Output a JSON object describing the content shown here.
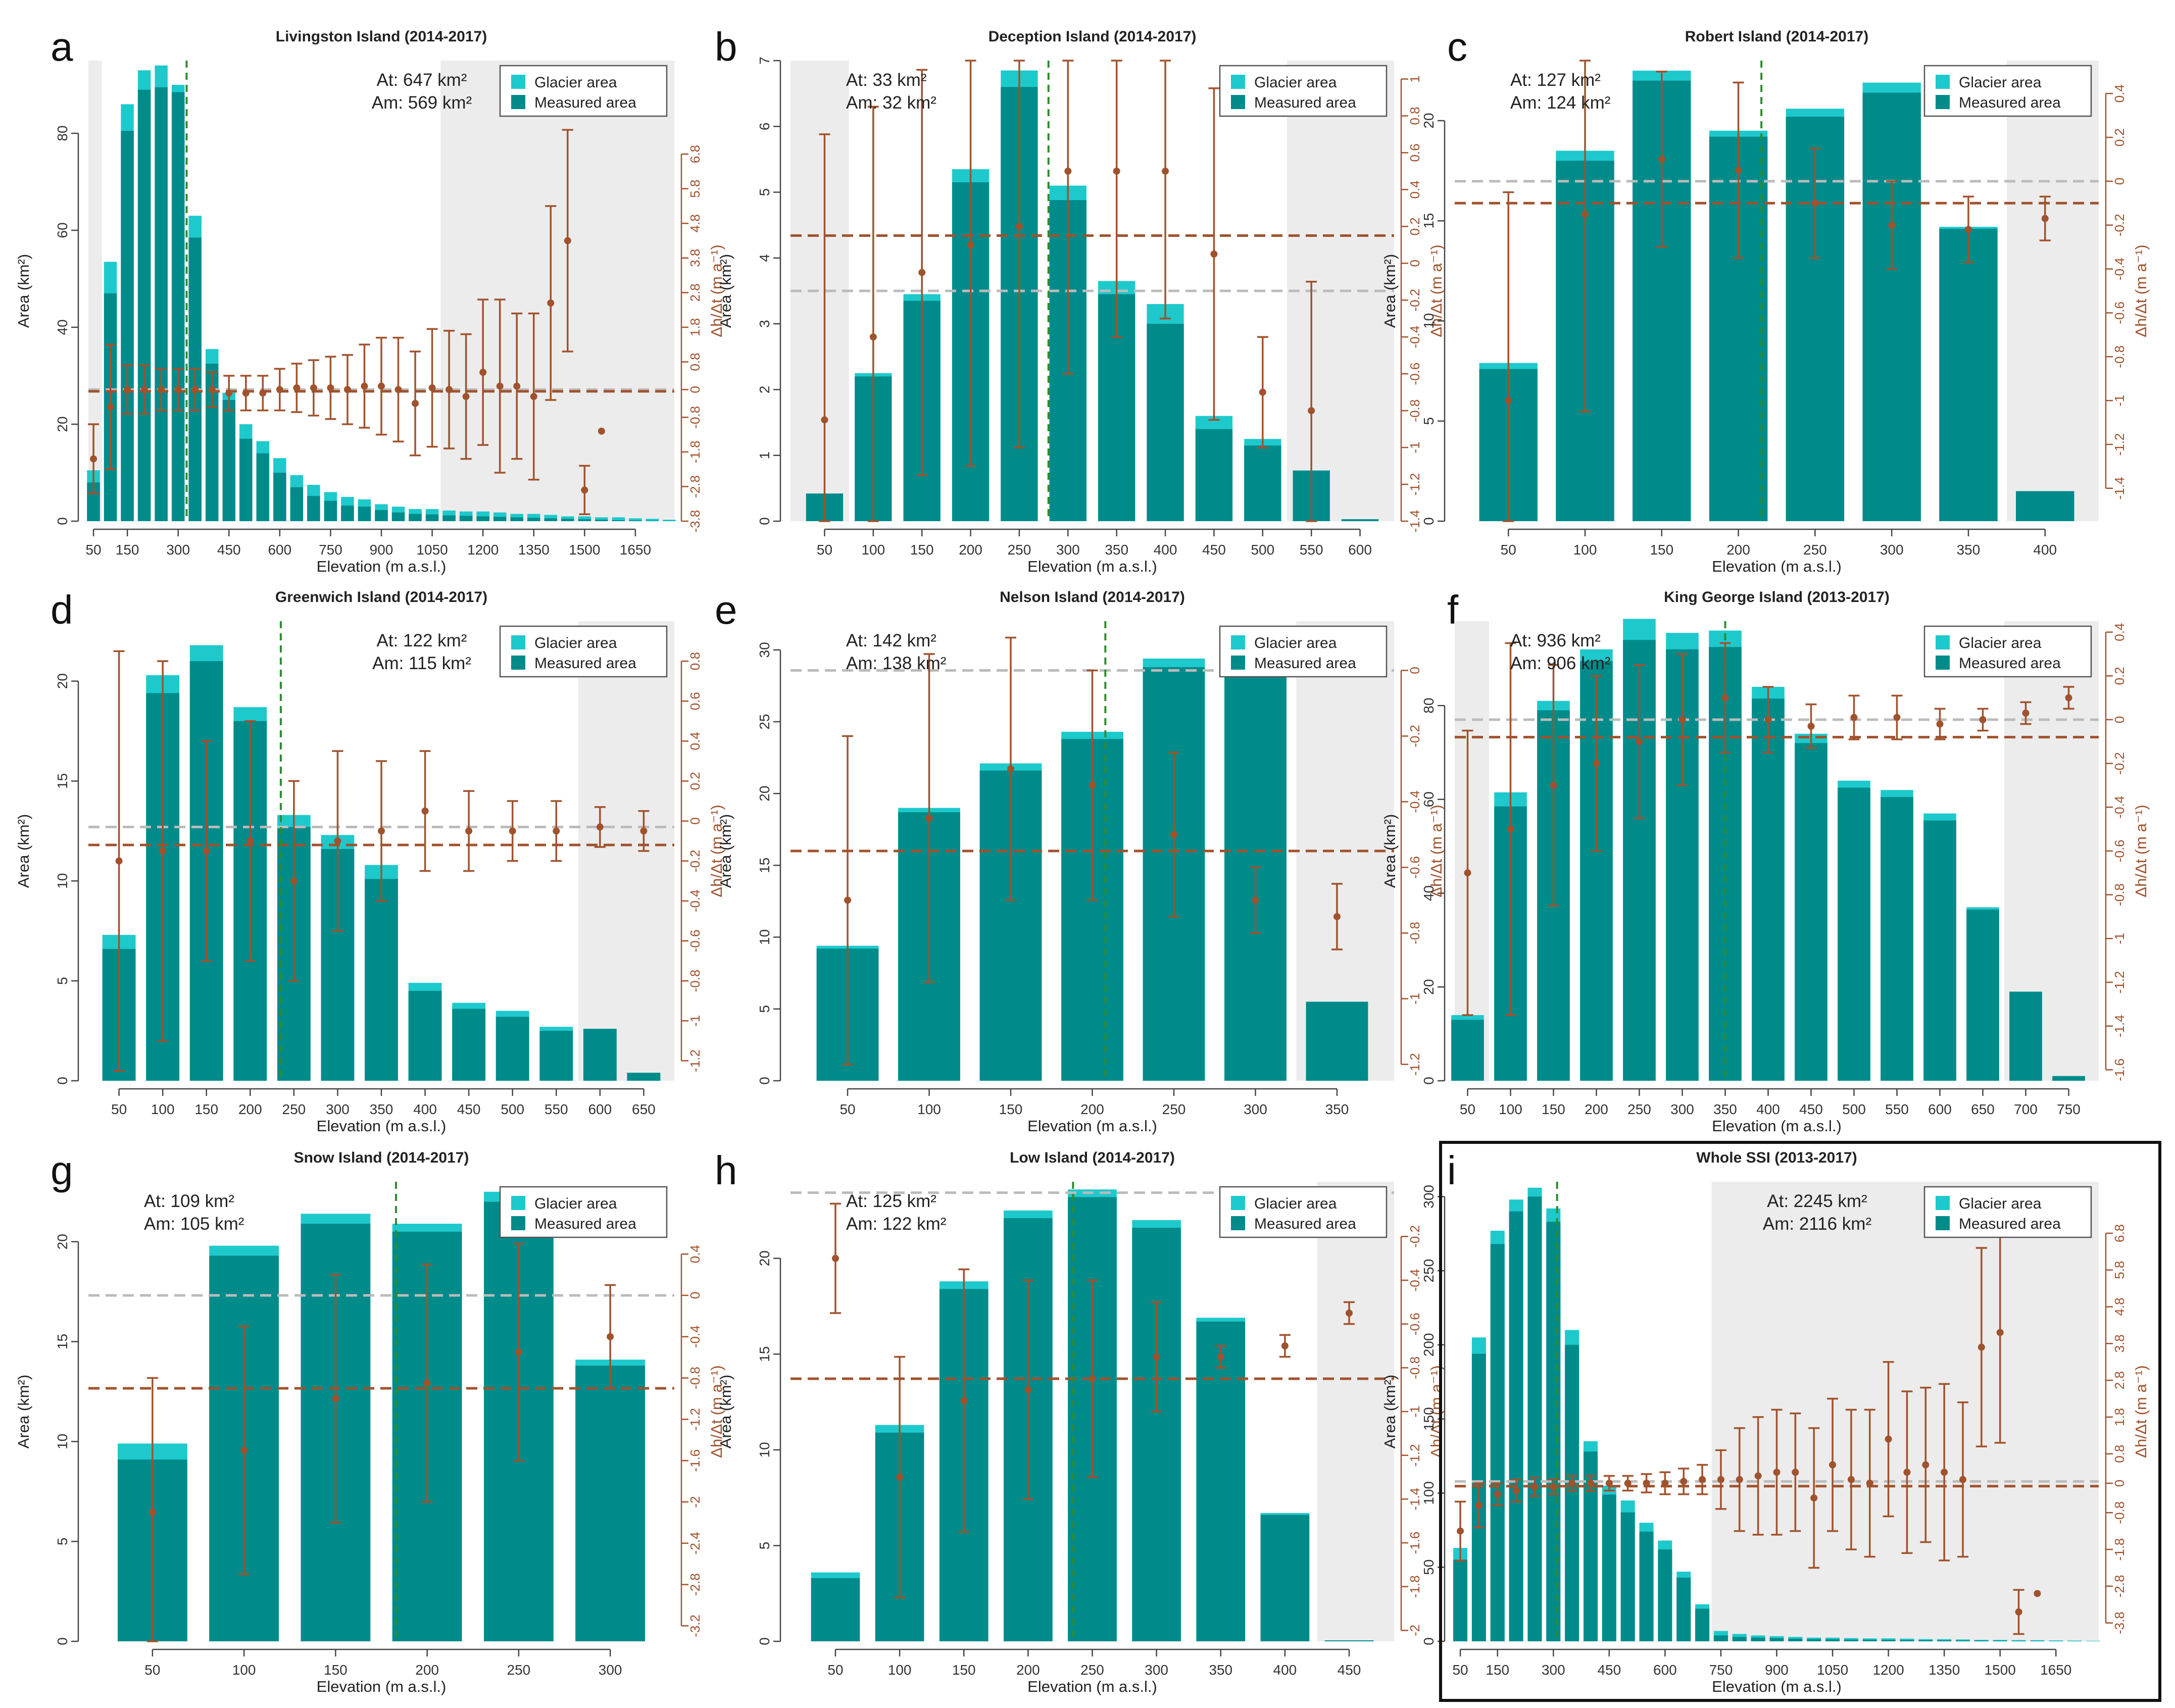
{
  "figure": {
    "legend_glacier": "Glacier area",
    "legend_measured": "Measured area",
    "xlabel": "Elevation (m a.s.l.)",
    "ylabel_left": "Area (km²)",
    "ylabel_right": "Δh/Δt (m a⁻¹)"
  },
  "colors": {
    "glacier": "#1ec9cc",
    "measured": "#008b8b",
    "measured_outside": "#2e8f8f",
    "dhdt": "#a0522d",
    "grey_line": "#bbbbbb",
    "green_line": "#2e8b2e",
    "shade": "#ececec"
  },
  "chart_data": [
    {
      "type": "bar",
      "panel": "a",
      "title": "Livingston Island (2014-2017)",
      "at_text": "At: 647 km²",
      "am_text": "Am: 569 km²",
      "bin": 50,
      "x_start": 50,
      "xlim": [
        35,
        1765
      ],
      "xticks": [
        50,
        150,
        300,
        450,
        600,
        750,
        900,
        1050,
        1200,
        1350,
        1500,
        1650
      ],
      "ylim": [
        0,
        95
      ],
      "yticks": [
        0,
        20,
        40,
        60,
        80
      ],
      "r_lim": [
        -3.8,
        9.5
      ],
      "r_ticks": [
        -3.8,
        -2.8,
        -1.8,
        -0.8,
        0,
        0.8,
        1.8,
        2.8,
        3.8,
        4.8,
        5.8,
        6.8
      ],
      "glacier": [
        10.5,
        53.5,
        86,
        93,
        94,
        90,
        63,
        35.5,
        26.5,
        20,
        16.5,
        13,
        9.5,
        7.5,
        6,
        5,
        4.5,
        3.5,
        3,
        2.5,
        2.5,
        2.2,
        2,
        2,
        1.8,
        1.5,
        1.5,
        1.3,
        1,
        1,
        0.8,
        0.8,
        0.6,
        0.5,
        0.3
      ],
      "measured": [
        8,
        47,
        80.5,
        89,
        89.5,
        88.5,
        58.5,
        32.5,
        25,
        17,
        14,
        10,
        7,
        5.2,
        4.2,
        3.2,
        3,
        2.3,
        1.8,
        1.5,
        1.4,
        1.2,
        1.1,
        1,
        0.9,
        0.8,
        0.7,
        0.6,
        0.5,
        0.4,
        0.3,
        0.2,
        0.15,
        0.1,
        0.05
      ],
      "dhdt": [
        -2.0,
        -0.5,
        0,
        0,
        0,
        0,
        0,
        0,
        -0.1,
        -0.1,
        -0.1,
        0,
        0.05,
        0.05,
        0.05,
        0,
        0.1,
        0.1,
        0,
        -0.4,
        0.05,
        0,
        -0.2,
        0.5,
        0.1,
        0.1,
        -0.2,
        2.5,
        4.3,
        -2.9,
        -1.2
      ],
      "dhdt_err": [
        1.0,
        1.8,
        0.7,
        0.7,
        0.6,
        0.6,
        0.6,
        0.5,
        0.5,
        0.5,
        0.5,
        0.6,
        0.7,
        0.8,
        0.9,
        1.0,
        1.2,
        1.4,
        1.5,
        1.5,
        1.7,
        1.7,
        1.8,
        2.1,
        2.5,
        2.1,
        2.4,
        2.8,
        3.2,
        0.7,
        0
      ],
      "mean_dhdt": -0.05,
      "zero_line": 0,
      "at_pos": "center",
      "legend_pos": "top-right",
      "measured_start": 50,
      "median_elev": 325,
      "shade_low": [
        35,
        75
      ],
      "shade_high": [
        1075,
        1765
      ]
    },
    {
      "type": "bar",
      "panel": "b",
      "title": "Deception Island (2014-2017)",
      "at_text": "At: 33 km²",
      "am_text": "Am: 32 km²",
      "bin": 50,
      "x_start": 50,
      "xlim": [
        15,
        635
      ],
      "xticks": [
        50,
        100,
        150,
        200,
        250,
        300,
        350,
        400,
        450,
        500,
        550,
        600
      ],
      "ylim": [
        0,
        7
      ],
      "yticks": [
        0,
        1,
        2,
        3,
        4,
        5,
        6,
        7
      ],
      "r_lim": [
        -1.4,
        1.1
      ],
      "r_ticks": [
        -1.4,
        -1.2,
        -1,
        -0.8,
        -0.6,
        -0.4,
        -0.2,
        0,
        0.2,
        0.4,
        0.6,
        0.8,
        1
      ],
      "glacier": [
        0.42,
        2.25,
        3.45,
        5.35,
        6.85,
        5.1,
        3.65,
        3.3,
        1.6,
        1.25,
        0.77,
        0.03
      ],
      "measured": [
        0.42,
        2.2,
        3.35,
        5.15,
        6.6,
        4.88,
        3.45,
        3.0,
        1.4,
        1.15,
        0.77,
        0.03
      ],
      "dhdt": [
        -0.85,
        -0.4,
        -0.05,
        0.1,
        0.2,
        0.5,
        0.5,
        0.5,
        0.05,
        -0.7,
        -0.8
      ],
      "dhdt_err": [
        1.55,
        1.25,
        1.1,
        1.2,
        1.2,
        1.1,
        0.9,
        0.8,
        0.9,
        0.3,
        0.7
      ],
      "mean_dhdt": 0.15,
      "zero_line": -0.15,
      "at_pos": "top-left",
      "legend_pos": "top-right",
      "measured_start": 50,
      "median_elev": 280,
      "shade_low": [
        15,
        75
      ],
      "shade_high": [
        525,
        635
      ]
    },
    {
      "type": "bar",
      "panel": "c",
      "title": "Robert Island (2014-2017)",
      "at_text": "At: 127 km²",
      "am_text": "Am: 124 km²",
      "bin": 50,
      "x_start": 50,
      "xlim": [
        15,
        435
      ],
      "xticks": [
        50,
        100,
        150,
        200,
        250,
        300,
        350,
        400
      ],
      "ylim": [
        0,
        23
      ],
      "yticks": [
        0,
        5,
        10,
        15,
        20
      ],
      "r_lim": [
        -1.55,
        0.55
      ],
      "r_ticks": [
        -1.4,
        -1.2,
        -1,
        -0.8,
        -0.6,
        -0.4,
        -0.2,
        0,
        0.2,
        0.4
      ],
      "glacier": [
        7.9,
        18.5,
        22.5,
        19.5,
        20.6,
        21.9,
        14.7,
        1.5
      ],
      "measured": [
        7.6,
        18,
        22,
        19.2,
        20.2,
        21.4,
        14.6,
        1.5
      ],
      "dhdt": [
        -1.0,
        -0.15,
        0.1,
        0.05,
        -0.1,
        -0.2,
        -0.22,
        -0.17
      ],
      "dhdt_err": [
        0.95,
        0.9,
        0.4,
        0.4,
        0.25,
        0.2,
        0.15,
        0.1
      ],
      "mean_dhdt": -0.1,
      "zero_line": 0,
      "at_pos": "top-left",
      "legend_pos": "top-right",
      "measured_start": 50,
      "median_elev": 215,
      "shade_low": null,
      "shade_high": [
        375,
        435
      ]
    },
    {
      "type": "bar",
      "panel": "d",
      "title": "Greenwich Island (2014-2017)",
      "at_text": "At: 122 km²",
      "am_text": "Am: 115 km²",
      "bin": 50,
      "x_start": 50,
      "xlim": [
        15,
        685
      ],
      "xticks": [
        50,
        100,
        150,
        200,
        250,
        300,
        350,
        400,
        450,
        500,
        550,
        600,
        650
      ],
      "ylim": [
        0,
        23
      ],
      "yticks": [
        0,
        5,
        10,
        15,
        20
      ],
      "r_lim": [
        -1.3,
        1.0
      ],
      "r_ticks": [
        -1.2,
        -1,
        -0.8,
        -0.6,
        -0.4,
        -0.2,
        0,
        0.2,
        0.4,
        0.6,
        0.8
      ],
      "glacier": [
        7.3,
        20.3,
        21.8,
        18.7,
        13.3,
        12.3,
        10.8,
        4.9,
        3.9,
        3.5,
        2.7,
        2.6,
        0.4
      ],
      "measured": [
        6.6,
        19.4,
        21,
        18,
        12.7,
        11.6,
        10.1,
        4.5,
        3.6,
        3.2,
        2.5,
        2.6,
        0.4
      ],
      "dhdt": [
        -0.2,
        -0.15,
        -0.15,
        -0.1,
        -0.3,
        -0.1,
        -0.05,
        0.05,
        -0.05,
        -0.05,
        -0.05,
        -0.03,
        -0.05
      ],
      "dhdt_err": [
        1.05,
        0.95,
        0.55,
        0.6,
        0.5,
        0.45,
        0.35,
        0.3,
        0.2,
        0.15,
        0.15,
        0.1,
        0.1
      ],
      "mean_dhdt": -0.12,
      "zero_line": -0.03,
      "at_pos": "center",
      "legend_pos": "top-right",
      "measured_start": 50,
      "median_elev": 235,
      "shade_low": null,
      "shade_high": [
        575,
        685
      ]
    },
    {
      "type": "bar",
      "panel": "e",
      "title": "Nelson Island (2014-2017)",
      "at_text": "At: 142 km²",
      "am_text": "Am: 138 km²",
      "bin": 50,
      "x_start": 50,
      "xlim": [
        15,
        385
      ],
      "xticks": [
        50,
        100,
        150,
        200,
        250,
        300,
        350
      ],
      "ylim": [
        0,
        32
      ],
      "yticks": [
        0,
        5,
        10,
        15,
        20,
        25,
        30
      ],
      "r_lim": [
        -1.25,
        0.15
      ],
      "r_ticks": [
        -1.2,
        -1,
        -0.8,
        -0.6,
        -0.4,
        -0.2,
        0
      ],
      "glacier": [
        9.4,
        19,
        22.1,
        24.3,
        29.4,
        29.2,
        5.5
      ],
      "measured": [
        9.2,
        18.7,
        21.6,
        23.8,
        28.8,
        29,
        5.5
      ],
      "dhdt": [
        -0.7,
        -0.45,
        -0.3,
        -0.35,
        -0.5,
        -0.7,
        -0.75
      ],
      "dhdt_err": [
        0.5,
        0.5,
        0.4,
        0.35,
        0.25,
        0.1,
        0.1
      ],
      "mean_dhdt": -0.55,
      "zero_line": 0,
      "at_pos": "top-left",
      "legend_pos": "top-right",
      "measured_start": 50,
      "median_elev": 208,
      "shade_low": null,
      "shade_high": [
        325,
        385
      ]
    },
    {
      "type": "bar",
      "panel": "f",
      "title": "King George Island (2013-2017)",
      "at_text": "At: 936 km²",
      "am_text": "Am: 906 km²",
      "bin": 50,
      "x_start": 50,
      "xlim": [
        35,
        785
      ],
      "xticks": [
        50,
        100,
        150,
        200,
        250,
        300,
        350,
        400,
        450,
        500,
        550,
        600,
        650,
        700,
        750
      ],
      "ylim": [
        0,
        98
      ],
      "yticks": [
        0,
        20,
        40,
        60,
        80
      ],
      "r_lim": [
        -1.65,
        0.45
      ],
      "r_ticks": [
        -1.6,
        -1.4,
        -1.2,
        -1,
        -0.8,
        -0.6,
        -0.4,
        -0.2,
        0,
        0.2,
        0.4
      ],
      "glacier": [
        14,
        61.5,
        81,
        92,
        98.5,
        95.5,
        96,
        84,
        74,
        64,
        62,
        57,
        37,
        19,
        1
      ],
      "measured": [
        13,
        58.5,
        79,
        89.5,
        94,
        92,
        92.5,
        81.5,
        72,
        62.5,
        60.5,
        55.5,
        36.5,
        19,
        1
      ],
      "dhdt": [
        -0.7,
        -0.5,
        -0.3,
        -0.2,
        -0.1,
        0,
        0.1,
        0,
        -0.03,
        0.01,
        0.01,
        -0.02,
        0,
        0.03,
        0.1
      ],
      "dhdt_err": [
        0.65,
        0.85,
        0.55,
        0.4,
        0.35,
        0.3,
        0.25,
        0.15,
        0.1,
        0.1,
        0.1,
        0.07,
        0.05,
        0.05,
        0.05
      ],
      "mean_dhdt": -0.08,
      "zero_line": 0,
      "at_pos": "top-left",
      "legend_pos": "top-right",
      "measured_start": 50,
      "median_elev": 350,
      "shade_low": [
        35,
        75
      ],
      "shade_high": [
        675,
        785
      ]
    },
    {
      "type": "bar",
      "panel": "g",
      "title": "Snow Island (2014-2017)",
      "at_text": "At: 109 km²",
      "am_text": "Am: 105 km²",
      "bin": 50,
      "x_start": 50,
      "xlim": [
        15,
        335
      ],
      "xticks": [
        50,
        100,
        150,
        200,
        250,
        300
      ],
      "ylim": [
        0,
        23
      ],
      "yticks": [
        0,
        5,
        10,
        15,
        20
      ],
      "r_lim": [
        -3.35,
        1.1
      ],
      "r_ticks": [
        -3.2,
        -2.8,
        -2.4,
        -2,
        -1.6,
        -1.2,
        -0.8,
        -0.4,
        0,
        0.4
      ],
      "glacier": [
        9.9,
        19.8,
        21.4,
        20.9,
        22.5,
        14.1
      ],
      "measured": [
        9.1,
        19.3,
        20.9,
        20.5,
        22,
        13.8
      ],
      "dhdt": [
        -2.1,
        -1.5,
        -1.0,
        -0.85,
        -0.55,
        -0.4
      ],
      "dhdt_err": [
        1.3,
        1.2,
        1.2,
        1.15,
        1.05,
        0.5
      ],
      "mean_dhdt": -0.9,
      "zero_line": 0,
      "at_pos": "top-left",
      "legend_pos": "top-right",
      "measured_start": 50,
      "median_elev": 183,
      "shade_low": null,
      "shade_high": null
    },
    {
      "type": "bar",
      "panel": "h",
      "title": "Low Island (2014-2017)",
      "at_text": "At: 125 km²",
      "am_text": "Am: 122 km²",
      "bin": 50,
      "x_start": 50,
      "xlim": [
        15,
        485
      ],
      "xticks": [
        50,
        100,
        150,
        200,
        250,
        300,
        350,
        400,
        450
      ],
      "ylim": [
        0,
        24
      ],
      "yticks": [
        0,
        5,
        10,
        15,
        20
      ],
      "r_lim": [
        -2.05,
        0.05
      ],
      "r_ticks": [
        -2,
        -1.8,
        -1.6,
        -1.4,
        -1.2,
        -1,
        -0.8,
        -0.6,
        -0.4,
        -0.2
      ],
      "glacier": [
        3.6,
        11.3,
        18.8,
        22.5,
        23.6,
        22,
        16.9,
        6.7,
        0.05
      ],
      "measured": [
        3.3,
        10.9,
        18.4,
        22.1,
        23.2,
        21.6,
        16.7,
        6.6,
        0.05
      ],
      "dhdt": [
        -0.3,
        -1.3,
        -0.95,
        -0.9,
        -0.85,
        -0.75,
        -0.75,
        -0.7,
        -0.55
      ],
      "dhdt_err": [
        0.25,
        0.55,
        0.6,
        0.5,
        0.45,
        0.25,
        0.05,
        0.05,
        0.05
      ],
      "mean_dhdt": -0.85,
      "zero_line": 0,
      "at_pos": "top-left",
      "legend_pos": "top-right",
      "measured_start": 50,
      "median_elev": 235,
      "shade_low": null,
      "shade_high": [
        425,
        485
      ]
    },
    {
      "type": "bar",
      "panel": "i",
      "title": "Whole SSI (2013-2017)",
      "at_text": "At: 2245 km²",
      "am_text": "Am: 2116 km²",
      "bin": 50,
      "x_start": 50,
      "xlim": [
        35,
        1765
      ],
      "xticks": [
        50,
        150,
        300,
        450,
        600,
        750,
        900,
        1050,
        1200,
        1350,
        1500,
        1650
      ],
      "ylim": [
        0,
        310
      ],
      "yticks": [
        0,
        50,
        100,
        150,
        200,
        250,
        300
      ],
      "r_lim": [
        -4.3,
        8.2
      ],
      "r_ticks": [
        -3.8,
        -2.8,
        -1.8,
        -0.8,
        0,
        0.8,
        1.8,
        2.8,
        3.8,
        4.8,
        5.8,
        6.8
      ],
      "glacier": [
        63,
        205,
        277,
        298,
        306,
        292,
        210,
        135,
        105,
        95,
        80,
        68,
        47,
        25,
        7,
        5,
        4,
        3.5,
        3,
        2.5,
        2.5,
        2.2,
        2,
        2,
        1.8,
        1.5,
        1.5,
        1.3,
        1,
        1,
        0.8,
        0.8,
        0.6,
        0.5,
        0.3
      ],
      "measured": [
        55,
        194,
        268,
        290,
        300,
        283,
        200,
        128,
        99,
        87,
        74,
        62,
        43,
        22,
        4,
        3,
        2.5,
        2.2,
        1.8,
        1.5,
        1.4,
        1.2,
        1.1,
        1,
        0.9,
        0.8,
        0.7,
        0.6,
        0.5,
        0.4,
        0.3,
        0.2,
        0.15,
        0.1,
        0.05
      ],
      "dhdt": [
        -1.3,
        -0.6,
        -0.3,
        -0.2,
        -0.1,
        -0.1,
        0,
        0,
        0,
        0,
        0,
        0,
        0.05,
        0.1,
        0.1,
        0.1,
        0.2,
        0.3,
        0.3,
        -0.4,
        0.5,
        0.1,
        0,
        1.2,
        0.3,
        0.5,
        0.3,
        0.1,
        3.7,
        4.1,
        -3.5,
        -3.0
      ],
      "dhdt_err": [
        0.8,
        0.6,
        0.3,
        0.3,
        0.25,
        0.2,
        0.2,
        0.2,
        0.2,
        0.2,
        0.25,
        0.3,
        0.35,
        0.4,
        0.8,
        1.4,
        1.6,
        1.7,
        1.6,
        1.9,
        1.8,
        1.9,
        2,
        2.1,
        2.2,
        2.1,
        2.4,
        2.1,
        2.7,
        3.0,
        0.6,
        0
      ],
      "mean_dhdt": -0.08,
      "zero_line": 0.05,
      "at_pos": "center",
      "legend_pos": "top-right",
      "measured_start": 50,
      "median_elev": 310,
      "shade_low": null,
      "shade_high": [
        725,
        1765
      ]
    }
  ]
}
